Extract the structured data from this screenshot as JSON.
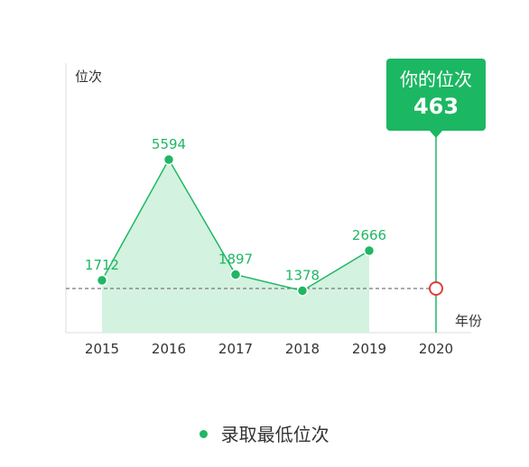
{
  "chart_data": {
    "type": "line",
    "ylabel": "位次",
    "xlabel": "年份",
    "categories": [
      "2015",
      "2016",
      "2017",
      "2018",
      "2019",
      "2020"
    ],
    "series": [
      {
        "name": "录取最低位次",
        "values": [
          1712,
          5594,
          1897,
          1378,
          2666,
          null
        ]
      }
    ],
    "ylim": [
      0,
      7000
    ],
    "area_fill": true,
    "grid": false,
    "reference": {
      "category": "2020",
      "value": 463
    },
    "callout": {
      "title": "你的位次",
      "value": "463"
    },
    "legend_position": "bottom",
    "colors": {
      "line": "#1fb763",
      "area": "#d3f2df",
      "callout_bg": "#1cb762",
      "reference_marker": "#e03c3c",
      "dashed": "#777777",
      "axis": "#dddddd"
    }
  }
}
